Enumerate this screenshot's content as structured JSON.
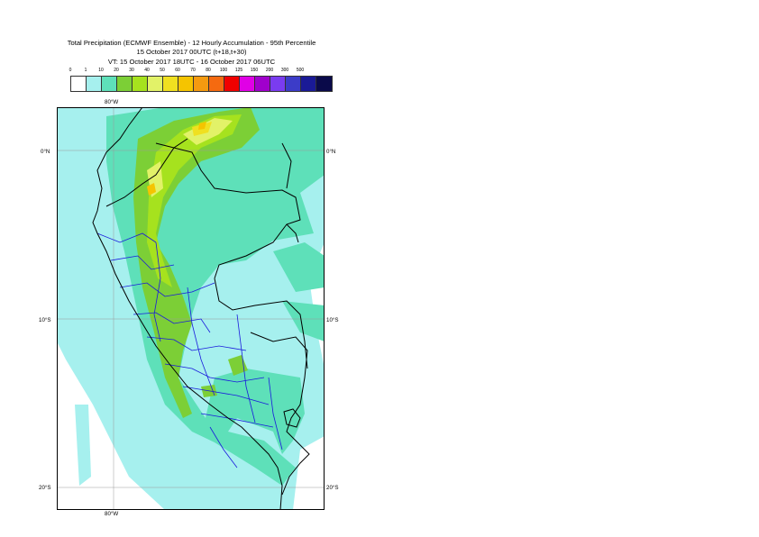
{
  "header": {
    "line1": "Total Precipitation (ECMWF Ensemble) - 12 Hourly Accumulation - 95th Percentile",
    "line2": "15 October 2017 00UTC (t+18,t+30)",
    "line3": "VT: 15 October 2017 18UTC - 16 October 2017 06UTC"
  },
  "legend": {
    "ticks": [
      "0",
      "1",
      "10",
      "20",
      "30",
      "40",
      "50",
      "60",
      "70",
      "80",
      "100",
      "125",
      "150",
      "200",
      "300",
      "500"
    ],
    "colors": [
      "#ffffff",
      "#a6f0ee",
      "#5ee0b9",
      "#7ccf36",
      "#a6e21e",
      "#e2f268",
      "#f0e020",
      "#f5c400",
      "#f59a10",
      "#f56a10",
      "#f00000",
      "#e000e6",
      "#a000cc",
      "#7a3cf0",
      "#3c3cc8",
      "#1a1a96",
      "#0a0a4a"
    ]
  },
  "map": {
    "lon_top": "80°W",
    "lon_bottom": "80°W",
    "lat_0_left": "0°N",
    "lat_0_right": "0°N",
    "lat_10_left": "10°S",
    "lat_10_right": "10°S",
    "lat_20_left": "20°S",
    "lat_20_right": "20°S"
  }
}
